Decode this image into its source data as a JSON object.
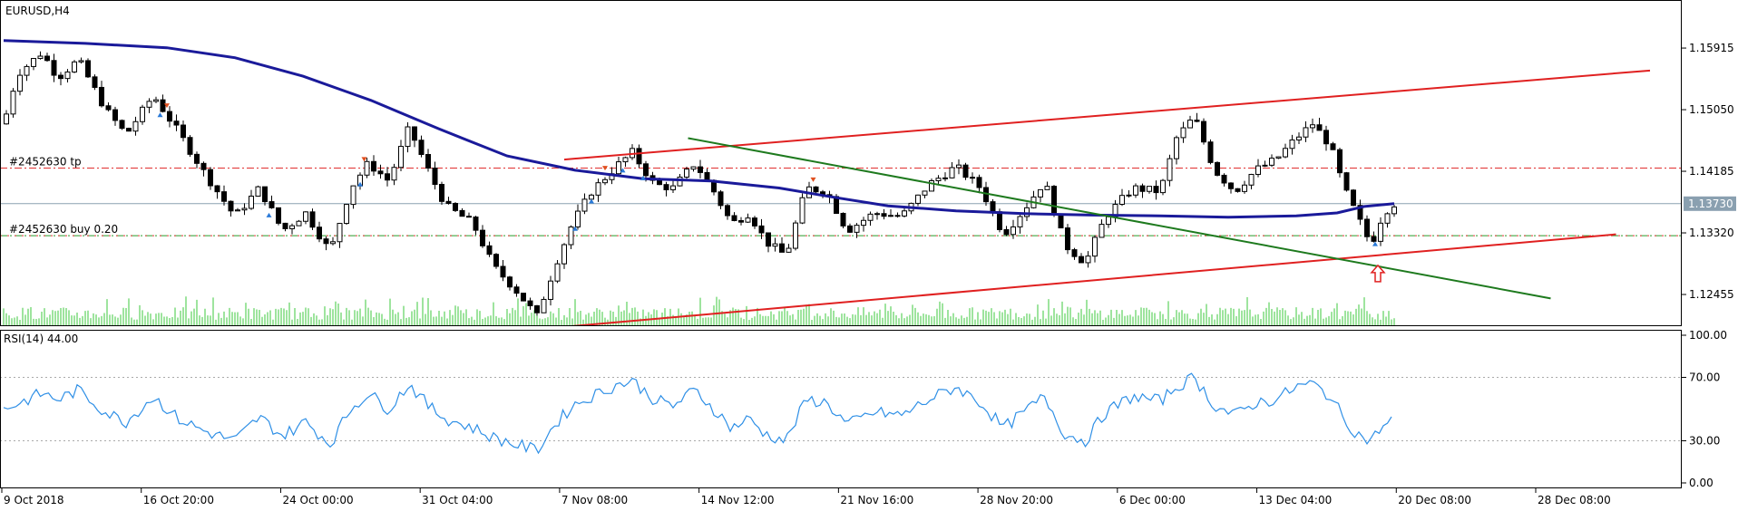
{
  "chart_data": {
    "type": "candlestick",
    "title": "EURUSD,H4",
    "price_axis": {
      "ticks": [
        "1.15915",
        "1.15050",
        "1.14185",
        "1.13320",
        "1.12455"
      ],
      "range": [
        1.1201,
        1.1659
      ]
    },
    "current_price": {
      "label": "1.13730",
      "value": 1.1373
    },
    "orders": {
      "tp_label": "#2452630 tp",
      "tp_price": 1.1423,
      "open_label": "#2452630 buy 0.20",
      "open_price": 1.1328
    },
    "time_axis": [
      "9 Oct 2018",
      "16 Oct 20:00",
      "24 Oct 00:00",
      "31 Oct 04:00",
      "7 Nov 08:00",
      "14 Nov 12:00",
      "21 Nov 16:00",
      "28 Nov 20:00",
      "6 Dec 00:00",
      "13 Dec 04:00",
      "20 Dec 08:00",
      "28 Dec 08:00"
    ],
    "price_path": [
      [
        0,
        1.1485
      ],
      [
        10,
        1.1555
      ],
      [
        28,
        1.1585
      ],
      [
        40,
        1.155
      ],
      [
        55,
        1.1575
      ],
      [
        75,
        1.1505
      ],
      [
        90,
        1.147
      ],
      [
        110,
        1.1525
      ],
      [
        128,
        1.1475
      ],
      [
        148,
        1.1415
      ],
      [
        170,
        1.1355
      ],
      [
        188,
        1.1395
      ],
      [
        205,
        1.1335
      ],
      [
        222,
        1.136
      ],
      [
        240,
        1.1305
      ],
      [
        255,
        1.1395
      ],
      [
        268,
        1.143
      ],
      [
        283,
        1.1405
      ],
      [
        298,
        1.148
      ],
      [
        312,
        1.142
      ],
      [
        325,
        1.137
      ],
      [
        345,
        1.1345
      ],
      [
        360,
        1.1285
      ],
      [
        375,
        1.1255
      ],
      [
        392,
        1.1215
      ],
      [
        405,
        1.1285
      ],
      [
        418,
        1.1345
      ],
      [
        432,
        1.139
      ],
      [
        450,
        1.1425
      ],
      [
        462,
        1.1445
      ],
      [
        478,
        1.14
      ],
      [
        492,
        1.1395
      ],
      [
        508,
        1.143
      ],
      [
        522,
        1.139
      ],
      [
        535,
        1.1345
      ],
      [
        548,
        1.136
      ],
      [
        560,
        1.132
      ],
      [
        575,
        1.13
      ],
      [
        590,
        1.1395
      ],
      [
        605,
        1.139
      ],
      [
        620,
        1.1335
      ],
      [
        640,
        1.136
      ],
      [
        660,
        1.1355
      ],
      [
        680,
        1.14
      ],
      [
        700,
        1.1425
      ],
      [
        718,
        1.1395
      ],
      [
        735,
        1.133
      ],
      [
        750,
        1.1365
      ],
      [
        765,
        1.1405
      ],
      [
        780,
        1.1315
      ],
      [
        795,
        1.129
      ],
      [
        810,
        1.1355
      ],
      [
        830,
        1.1395
      ],
      [
        850,
        1.139
      ],
      [
        862,
        1.1465
      ],
      [
        875,
        1.1495
      ],
      [
        890,
        1.142
      ],
      [
        905,
        1.139
      ],
      [
        920,
        1.142
      ],
      [
        935,
        1.1435
      ],
      [
        950,
        1.1465
      ],
      [
        962,
        1.1485
      ],
      [
        975,
        1.1455
      ],
      [
        985,
        1.1395
      ],
      [
        995,
        1.1355
      ],
      [
        1005,
        1.1315
      ],
      [
        1014,
        1.136
      ],
      [
        1022,
        1.1373
      ]
    ],
    "moving_average": [
      [
        0,
        1.1602
      ],
      [
        60,
        1.1598
      ],
      [
        120,
        1.1592
      ],
      [
        170,
        1.1578
      ],
      [
        220,
        1.1552
      ],
      [
        270,
        1.1518
      ],
      [
        320,
        1.1478
      ],
      [
        370,
        1.144
      ],
      [
        420,
        1.142
      ],
      [
        470,
        1.1408
      ],
      [
        520,
        1.1405
      ],
      [
        570,
        1.1395
      ],
      [
        610,
        1.1382
      ],
      [
        650,
        1.137
      ],
      [
        700,
        1.1363
      ],
      [
        750,
        1.1359
      ],
      [
        800,
        1.1357
      ],
      [
        850,
        1.1356
      ],
      [
        900,
        1.1354
      ],
      [
        950,
        1.1356
      ],
      [
        980,
        1.136
      ],
      [
        1000,
        1.1369
      ],
      [
        1022,
        1.1373
      ]
    ],
    "trendlines": {
      "channel_upper": [
        [
          412,
          1.1435
        ],
        [
          1210,
          1.156
        ]
      ],
      "channel_lower": [
        [
          412,
          1.12
        ],
        [
          1185,
          1.133
        ]
      ],
      "green_line": [
        [
          503,
          1.1465
        ],
        [
          1137,
          1.124
        ]
      ]
    },
    "buy_signal_arrow": {
      "x": 1010,
      "price": 1.1275
    },
    "indicator": {
      "label": "RSI(14) 44.00",
      "ticks": [
        "100.00",
        "70.00",
        "30.00",
        "0.00"
      ],
      "range": [
        0,
        100
      ],
      "levels": [
        70,
        30
      ],
      "value": 44.0,
      "path": [
        [
          0,
          50
        ],
        [
          15,
          55
        ],
        [
          28,
          60
        ],
        [
          40,
          56
        ],
        [
          55,
          62
        ],
        [
          75,
          48
        ],
        [
          90,
          42
        ],
        [
          110,
          58
        ],
        [
          128,
          44
        ],
        [
          148,
          36
        ],
        [
          170,
          30
        ],
        [
          188,
          45
        ],
        [
          205,
          33
        ],
        [
          222,
          42
        ],
        [
          240,
          28
        ],
        [
          255,
          50
        ],
        [
          268,
          60
        ],
        [
          283,
          50
        ],
        [
          298,
          66
        ],
        [
          312,
          52
        ],
        [
          325,
          44
        ],
        [
          345,
          38
        ],
        [
          360,
          32
        ],
        [
          375,
          28
        ],
        [
          392,
          24
        ],
        [
          405,
          40
        ],
        [
          418,
          52
        ],
        [
          432,
          58
        ],
        [
          450,
          65
        ],
        [
          462,
          68
        ],
        [
          478,
          56
        ],
        [
          492,
          52
        ],
        [
          508,
          62
        ],
        [
          522,
          50
        ],
        [
          535,
          38
        ],
        [
          548,
          44
        ],
        [
          560,
          34
        ],
        [
          575,
          30
        ],
        [
          590,
          56
        ],
        [
          605,
          54
        ],
        [
          620,
          40
        ],
        [
          640,
          48
        ],
        [
          660,
          46
        ],
        [
          680,
          56
        ],
        [
          700,
          64
        ],
        [
          718,
          54
        ],
        [
          735,
          38
        ],
        [
          750,
          48
        ],
        [
          765,
          58
        ],
        [
          780,
          34
        ],
        [
          795,
          30
        ],
        [
          810,
          48
        ],
        [
          830,
          58
        ],
        [
          850,
          55
        ],
        [
          862,
          64
        ],
        [
          875,
          70
        ],
        [
          890,
          52
        ],
        [
          905,
          46
        ],
        [
          920,
          54
        ],
        [
          935,
          56
        ],
        [
          950,
          64
        ],
        [
          962,
          66
        ],
        [
          975,
          58
        ],
        [
          985,
          44
        ],
        [
          995,
          34
        ],
        [
          1005,
          30
        ],
        [
          1012,
          38
        ],
        [
          1022,
          44
        ]
      ]
    },
    "volume_visible": true
  }
}
